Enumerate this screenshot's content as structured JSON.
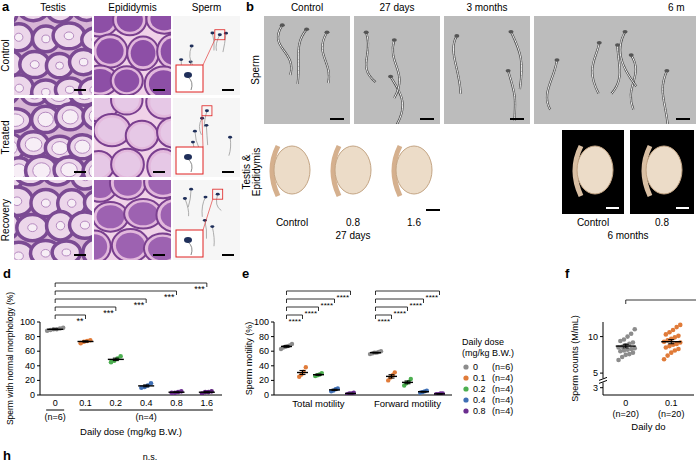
{
  "figure": {
    "panel_a": {
      "letter": "a",
      "columns": [
        "Testis",
        "Epididymis",
        "Sperm"
      ],
      "rows": [
        "Control",
        "Treated",
        "Recovery"
      ]
    },
    "panel_b": {
      "letter": "b",
      "columns": [
        "Control",
        "27 days",
        "3 months",
        "6 m"
      ],
      "sperm_label": "Sperm",
      "organ_label": "Testis & Epididymis",
      "organ_labels": [
        "Control",
        "0.8",
        "1.6",
        "Control",
        "0.8"
      ],
      "organ_groups": [
        "27 days",
        "6 months"
      ]
    },
    "panel_h": {
      "letter": "h",
      "note": "n.s."
    }
  },
  "chart_data": [
    {
      "type": "dot",
      "letter": "d",
      "y_label": "Sperm with normal morphology (%)",
      "x_label": "Daily dose (mg/kg B.W.)",
      "categories": [
        "0",
        "0.1",
        "0.2",
        "0.4",
        "0.8",
        "1.6"
      ],
      "colors": [
        "#8c8c8c",
        "#e07b39",
        "#4caf50",
        "#3f6fb5",
        "#6b2d8f",
        "#5b1f7a"
      ],
      "values": [
        90,
        73.3,
        48.8,
        12.5,
        3.8,
        3.8
      ],
      "errors": [
        0.6,
        0.9,
        1.7,
        1.3,
        0.5,
        0.6
      ],
      "points": [
        [
          88,
          89,
          90,
          90,
          91,
          92
        ],
        [
          71,
          73,
          74,
          75
        ],
        [
          45,
          47,
          50,
          53
        ],
        [
          10,
          11,
          13,
          16
        ],
        [
          3,
          3,
          4,
          5
        ],
        [
          2,
          4,
          4,
          5
        ]
      ],
      "n_labels": [
        "(n=6)",
        "(n=4)"
      ],
      "significance": [
        "**",
        "***",
        "***",
        "***",
        "***"
      ],
      "ylim": [
        0,
        100
      ],
      "yticks": [
        0,
        20,
        40,
        60,
        80,
        100
      ]
    },
    {
      "type": "dot",
      "letter": "e",
      "y_label": "Sperm motility (%)",
      "categories": [
        "Total motility",
        "Forward motility"
      ],
      "legend_title": "Daily dose (mg/kg B.W.)",
      "legend": "right",
      "series": [
        {
          "name": "0",
          "n_label": "(n=6)",
          "color": "#8c8c8c",
          "values": [
            66.5,
            58
          ],
          "errors": [
            1.1,
            0.6
          ],
          "points": [
            [
              63,
              65,
              66,
              67,
              68,
              70
            ],
            [
              56,
              57,
              58,
              58,
              59,
              60
            ]
          ]
        },
        {
          "name": "0.1",
          "n_label": "(n=4)",
          "color": "#e07b39",
          "values": [
            30.8,
            25.5
          ],
          "errors": [
            2.8,
            2.3
          ],
          "points": [
            [
              25,
              28,
              32,
              38
            ],
            [
              20,
              24,
              27,
              31
            ]
          ]
        },
        {
          "name": "0.2",
          "n_label": "(n=4)",
          "color": "#4caf50",
          "values": [
            27.8,
            17.3
          ],
          "errors": [
            0.9,
            1.9
          ],
          "points": [
            [
              26,
              27,
              28,
              30
            ],
            [
              13,
              16,
              18,
              22
            ]
          ]
        },
        {
          "name": "0.4",
          "n_label": "(n=4)",
          "color": "#3f6fb5",
          "values": [
            7,
            4.5
          ],
          "errors": [
            0.9,
            0.6
          ],
          "points": [
            [
              5,
              6,
              8,
              9
            ],
            [
              3,
              4,
              5,
              6
            ]
          ]
        },
        {
          "name": "0.8",
          "n_label": "(n=4)",
          "color": "#6b2d8f",
          "values": [
            2,
            1.5
          ],
          "errors": [
            0.4,
            0.3
          ],
          "points": [
            [
              1,
              2,
              2,
              3
            ],
            [
              1,
              1,
              2,
              2
            ]
          ]
        }
      ],
      "significance": [
        [
          "****",
          "****",
          "****",
          "****"
        ],
        [
          "****",
          "****",
          "****",
          "****"
        ]
      ],
      "ylim": [
        0,
        100
      ],
      "yticks": [
        0,
        20,
        40,
        60,
        80,
        100
      ]
    },
    {
      "type": "dot",
      "letter": "f",
      "y_label": "Sperm counts (M/mL)",
      "x_label": "Daily do",
      "categories": [
        "0",
        "0.1"
      ],
      "n_labels": [
        "(n=20)",
        "(n=20)"
      ],
      "colors": [
        "#8c8c8c",
        "#e07b39"
      ],
      "values": [
        8.7,
        9.3
      ],
      "errors": [
        0.25,
        0.28
      ],
      "points": [
        [
          6.8,
          7.2,
          7.5,
          7.6,
          7.8,
          8.0,
          8.1,
          8.2,
          8.3,
          8.4,
          8.5,
          8.6,
          8.8,
          9.0,
          9.2,
          9.4,
          9.6,
          10.0,
          10.4,
          11.0
        ],
        [
          6.9,
          7.4,
          7.8,
          8.1,
          8.3,
          8.5,
          8.7,
          8.9,
          9.0,
          9.2,
          9.3,
          9.5,
          9.7,
          9.9,
          10.1,
          10.3,
          10.6,
          10.9,
          11.3,
          11.6
        ]
      ],
      "ylim": [
        2,
        12
      ],
      "yticks": [
        3,
        5,
        10
      ]
    }
  ]
}
